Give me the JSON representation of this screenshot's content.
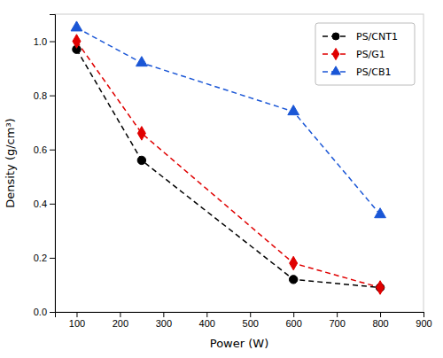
{
  "chart_data": {
    "type": "line",
    "x": [
      100,
      250,
      600,
      800
    ],
    "series": [
      {
        "name": "PS/CNT1",
        "color": "#000000",
        "marker": "circle",
        "line_style": "dashed",
        "values": [
          0.97,
          0.56,
          0.12,
          0.09
        ]
      },
      {
        "name": "PS/G1",
        "color": "#e00000",
        "marker": "diamond",
        "line_style": "dashed",
        "values": [
          1.0,
          0.66,
          0.18,
          0.09
        ]
      },
      {
        "name": "PS/CB1",
        "color": "#1a56d6",
        "marker": "triangle",
        "line_style": "dashed",
        "values": [
          1.05,
          0.92,
          0.74,
          0.36
        ]
      }
    ],
    "xlabel": "Power (W)",
    "ylabel": "Density (g/cm³)",
    "xlim": [
      50,
      900
    ],
    "ylim": [
      0.0,
      1.1
    ],
    "xticks": [
      100,
      200,
      300,
      400,
      500,
      600,
      700,
      800,
      900
    ],
    "yticks": [
      {
        "value": 0,
        "label": "0.0"
      },
      0.2,
      0.4,
      0.6,
      0.8,
      {
        "value": 1,
        "label": "1.0"
      }
    ],
    "legend": "upper right",
    "grid": false
  }
}
